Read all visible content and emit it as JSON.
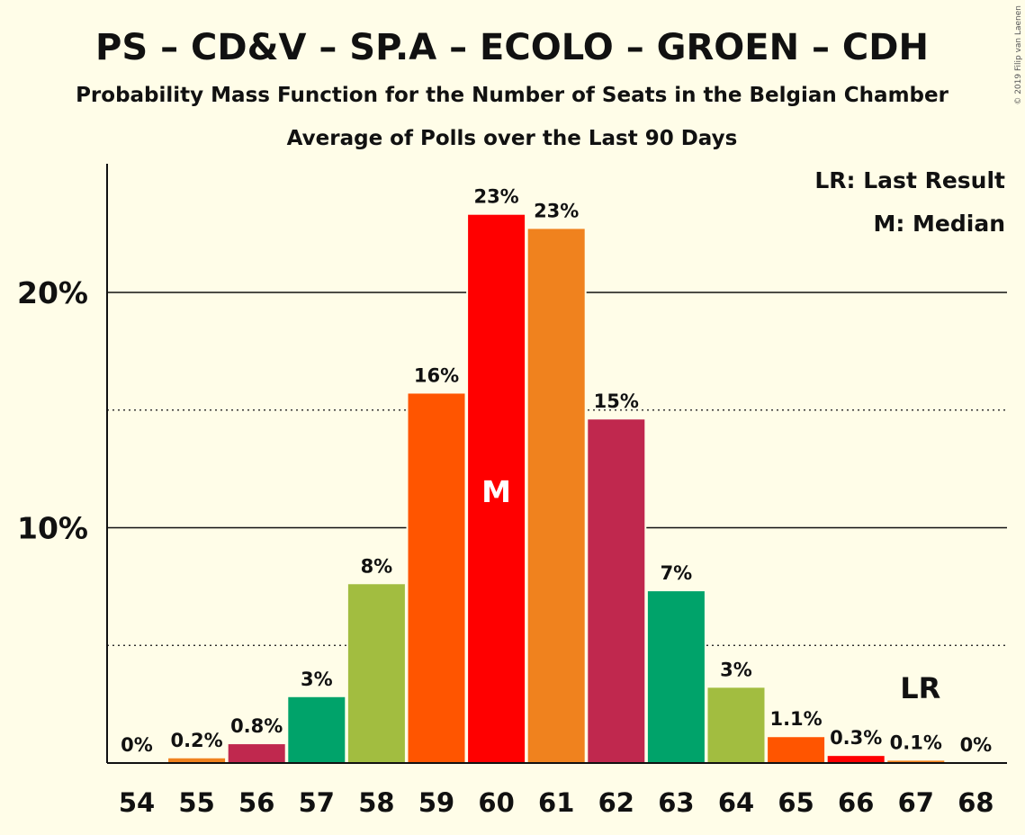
{
  "title": "PS – CD&V – SP.A – ECOLO – GROEN – CDH",
  "subtitle": "Probability Mass Function for the Number of Seats in the Belgian Chamber",
  "subtitle2": "Average of Polls over the Last 90 Days",
  "legend": {
    "last_result": "LR: Last Result",
    "median": "M: Median"
  },
  "copyright": "© 2019 Filip van Laenen",
  "chart_data": {
    "type": "bar",
    "categories": [
      "54",
      "55",
      "56",
      "57",
      "58",
      "59",
      "60",
      "61",
      "62",
      "63",
      "64",
      "65",
      "66",
      "67",
      "68"
    ],
    "values": [
      0,
      0.2,
      0.8,
      2.8,
      7.6,
      15.7,
      23.3,
      22.7,
      14.6,
      7.3,
      3.2,
      1.1,
      0.3,
      0.1,
      0
    ],
    "data_labels": [
      "0%",
      "0.2%",
      "0.8%",
      "3%",
      "8%",
      "16%",
      "23%",
      "23%",
      "15%",
      "7%",
      "3%",
      "1.1%",
      "0.3%",
      "0.1%",
      "0%"
    ],
    "colors": [
      "#F0821E",
      "#F0821E",
      "#C0284E",
      "#00A36A",
      "#A2BD40",
      "#FF5500",
      "#FF0000",
      "#F0821E",
      "#C0284E",
      "#00A36A",
      "#A2BD40",
      "#FF5500",
      "#FF0000",
      "#F0821E",
      "#F0821E"
    ],
    "yticks": [
      {
        "value": 10,
        "label": "10%"
      },
      {
        "value": 20,
        "label": "20%"
      }
    ],
    "minor_gridlines": [
      5,
      15
    ],
    "ylim": [
      0,
      25.5
    ],
    "median_category": "60",
    "median_label": "M",
    "last_result_category": "67",
    "last_result_label": "LR",
    "legend_position": "top-right"
  }
}
